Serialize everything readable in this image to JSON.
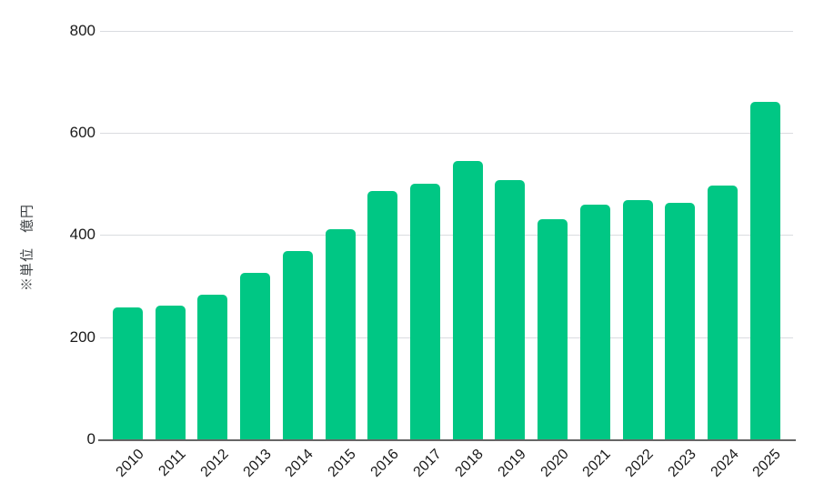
{
  "chart_data": {
    "type": "bar",
    "title": "",
    "xlabel": "",
    "ylabel": "※単位　億円",
    "categories": [
      "2010",
      "2011",
      "2012",
      "2013",
      "2014",
      "2015",
      "2016",
      "2017",
      "2018",
      "2019",
      "2020",
      "2021",
      "2022",
      "2023",
      "2024",
      "2025"
    ],
    "values": [
      258,
      261,
      283,
      326,
      369,
      412,
      486,
      501,
      545,
      508,
      431,
      459,
      468,
      463,
      497,
      661
    ],
    "ylim": [
      0,
      800
    ],
    "yticks": [
      0,
      200,
      400,
      600,
      800
    ],
    "grid": true,
    "legend_position": "none",
    "colors": {
      "bar": "#00C784",
      "gridline": "#DADCE0",
      "axis_line": "#666666",
      "tick_label": "#1a1a1a",
      "axis_title": "#3c4043",
      "background": "#ffffff"
    }
  }
}
